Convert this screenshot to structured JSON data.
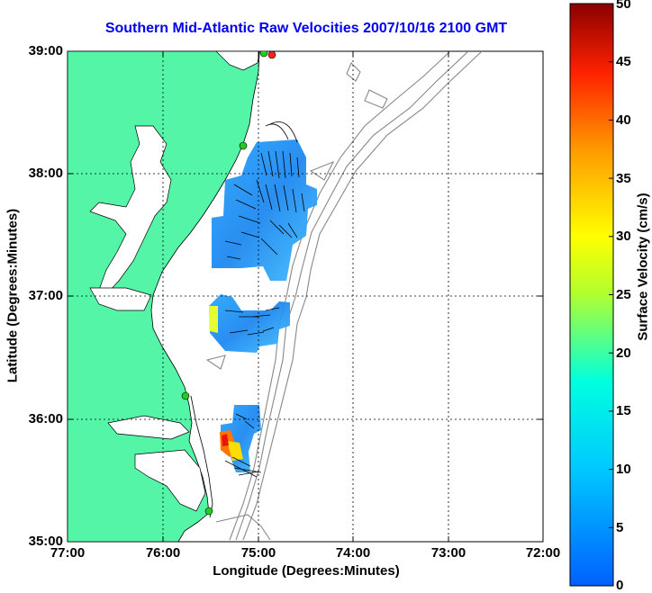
{
  "title": "Southern Mid-Atlantic Raw Velocities 2007/10/16 2100 GMT",
  "axes": {
    "xlabel": "Longitude (Degrees:Minutes)",
    "ylabel": "Latitude (Degrees:Minutes)",
    "x_ticks": [
      "77:00",
      "76:00",
      "75:00",
      "74:00",
      "73:00",
      "72:00"
    ],
    "y_ticks": [
      "39:00",
      "38:00",
      "37:00",
      "36:00",
      "35:00"
    ]
  },
  "colorbar": {
    "label": "Surface Velocity (cm/s)",
    "ticks": [
      "50",
      "45",
      "40",
      "35",
      "30",
      "25",
      "20",
      "15",
      "10",
      "5",
      "0"
    ],
    "range": [
      0,
      50
    ],
    "low_color": "#0055ff",
    "high_color": "#8b0000"
  },
  "colors": {
    "land": "#55f5a8",
    "ocean": "#ffffff",
    "bathymetry": "#888888",
    "grid": "#000000",
    "station": "#22cc22",
    "station_alt": "#ff2222"
  }
}
